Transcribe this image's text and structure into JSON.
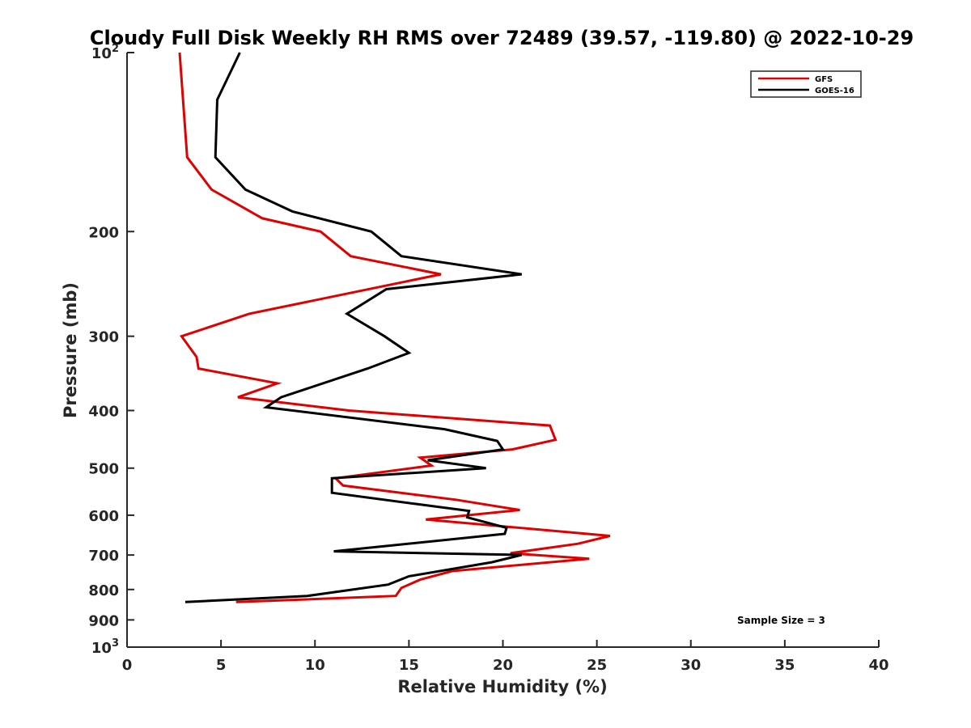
{
  "chart_data": {
    "type": "line",
    "title": "Cloudy Full Disk Weekly RH RMS over 72489 (39.57, -119.80) @ 2022-10-29",
    "xlabel": "Relative Humidity (%)",
    "ylabel": "Pressure (mb)",
    "xlim": [
      0,
      40
    ],
    "ylim": [
      100,
      1000
    ],
    "y_scale": "log",
    "y_reversed": true,
    "x_ticks": [
      "0",
      "5",
      "10",
      "15",
      "20",
      "25",
      "30",
      "35",
      "40"
    ],
    "y_ticks": [
      {
        "value": 100,
        "base": "10",
        "exp": "2"
      },
      {
        "value": 200,
        "label": "200"
      },
      {
        "value": 300,
        "label": "300"
      },
      {
        "value": 400,
        "label": "400"
      },
      {
        "value": 500,
        "label": "500"
      },
      {
        "value": 600,
        "label": "600"
      },
      {
        "value": 700,
        "label": "700"
      },
      {
        "value": 800,
        "label": "800"
      },
      {
        "value": 900,
        "label": "900"
      },
      {
        "value": 1000,
        "base": "10",
        "exp": "3"
      }
    ],
    "grid": false,
    "legend_position": "top-right",
    "annotation": "Sample Size = 3",
    "series": [
      {
        "name": "GFS",
        "color": "#e00000",
        "points": [
          [
            2.8,
            100
          ],
          [
            3.2,
            150
          ],
          [
            4.5,
            170
          ],
          [
            7.2,
            190
          ],
          [
            10.3,
            200
          ],
          [
            11.9,
            220
          ],
          [
            16.7,
            236
          ],
          [
            6.5,
            275
          ],
          [
            2.9,
            300
          ],
          [
            3.7,
            325
          ],
          [
            3.8,
            340
          ],
          [
            8.0,
            360
          ],
          [
            5.9,
            380
          ],
          [
            11.8,
            400
          ],
          [
            22.5,
            424
          ],
          [
            22.8,
            448
          ],
          [
            20.5,
            465
          ],
          [
            15.6,
            480
          ],
          [
            16.2,
            495
          ],
          [
            11.1,
            520
          ],
          [
            11.5,
            535
          ],
          [
            17.5,
            565
          ],
          [
            20.9,
            588
          ],
          [
            15.9,
            610
          ],
          [
            25.7,
            650
          ],
          [
            24.0,
            670
          ],
          [
            20.4,
            695
          ],
          [
            24.6,
            710
          ],
          [
            17.3,
            745
          ],
          [
            15.6,
            770
          ],
          [
            14.6,
            795
          ],
          [
            14.3,
            820
          ],
          [
            5.8,
            840
          ]
        ]
      },
      {
        "name": "GOES-16",
        "color": "#000000",
        "points": [
          [
            6.0,
            100
          ],
          [
            4.8,
            120
          ],
          [
            4.7,
            150
          ],
          [
            6.3,
            170
          ],
          [
            8.8,
            185
          ],
          [
            13.0,
            200
          ],
          [
            14.6,
            220
          ],
          [
            21.0,
            236
          ],
          [
            13.8,
            250
          ],
          [
            11.7,
            275
          ],
          [
            13.7,
            300
          ],
          [
            15.0,
            320
          ],
          [
            12.8,
            340
          ],
          [
            8.2,
            380
          ],
          [
            7.4,
            395
          ],
          [
            16.9,
            430
          ],
          [
            19.7,
            450
          ],
          [
            20.0,
            465
          ],
          [
            16.0,
            485
          ],
          [
            19.1,
            500
          ],
          [
            10.9,
            520
          ],
          [
            10.9,
            550
          ],
          [
            15.5,
            575
          ],
          [
            18.2,
            590
          ],
          [
            18.1,
            605
          ],
          [
            20.2,
            630
          ],
          [
            20.1,
            645
          ],
          [
            11.0,
            690
          ],
          [
            21.0,
            700
          ],
          [
            19.4,
            720
          ],
          [
            15.0,
            760
          ],
          [
            13.9,
            785
          ],
          [
            9.6,
            820
          ],
          [
            3.1,
            840
          ]
        ]
      }
    ]
  }
}
